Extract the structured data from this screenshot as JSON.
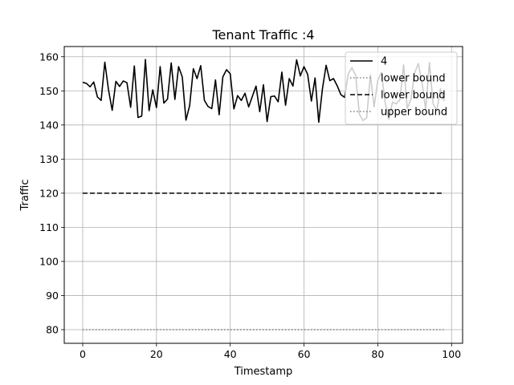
{
  "chart_data": {
    "type": "line",
    "title": "Tenant Traffic :4",
    "xlabel": "Timestamp",
    "ylabel": "Traffic",
    "xlim": [
      -5,
      103
    ],
    "ylim": [
      76,
      163
    ],
    "xticks": [
      0,
      20,
      40,
      60,
      80,
      100
    ],
    "yticks": [
      80,
      90,
      100,
      110,
      120,
      130,
      140,
      150,
      160
    ],
    "grid": true,
    "legend_position": "top-right",
    "series": [
      {
        "name": "4",
        "style": "solid",
        "color": "#000000",
        "x": [
          0,
          1,
          2,
          3,
          4,
          5,
          6,
          7,
          8,
          9,
          10,
          11,
          12,
          13,
          14,
          15,
          16,
          17,
          18,
          19,
          20,
          21,
          22,
          23,
          24,
          25,
          26,
          27,
          28,
          29,
          30,
          31,
          32,
          33,
          34,
          35,
          36,
          37,
          38,
          39,
          40,
          41,
          42,
          43,
          44,
          45,
          46,
          47,
          48,
          49,
          50,
          51,
          52,
          53,
          54,
          55,
          56,
          57,
          58,
          59,
          60,
          61,
          62,
          63,
          64,
          65,
          66,
          67,
          68,
          69,
          70,
          71,
          72,
          73,
          74,
          75,
          76,
          77,
          78,
          79,
          80,
          81,
          82,
          83,
          84,
          85,
          86,
          87,
          88,
          89,
          90,
          91,
          92,
          93,
          94,
          95,
          96,
          97,
          98
        ],
        "y": [
          152.5,
          152.2,
          151.2,
          152.6,
          148.2,
          147.2,
          158.4,
          150.3,
          144.3,
          152.8,
          151.3,
          152.9,
          152.4,
          145.2,
          157.3,
          142.2,
          142.6,
          159.2,
          144.2,
          150.3,
          145.1,
          157.1,
          146.4,
          147.6,
          158.2,
          147.5,
          157.1,
          154.1,
          141.4,
          145.7,
          156.5,
          153.6,
          157.4,
          147.2,
          145.4,
          144.8,
          153.2,
          143.0,
          154.1,
          156.2,
          155.0,
          144.7,
          148.6,
          147.2,
          149.3,
          145.3,
          148.4,
          151.4,
          143.9,
          151.8,
          141.0,
          148.3,
          148.5,
          146.8,
          155.5,
          145.8,
          153.6,
          151.4,
          159.1,
          154.4,
          157.1,
          154.8,
          147.0,
          153.8,
          140.8,
          150.6,
          157.5,
          153.0,
          153.6,
          151.5,
          148.9,
          148.1,
          155.0,
          156.8,
          154.6,
          143.2,
          141.3,
          142.1,
          154.7,
          145.3,
          153.0,
          155.4,
          146.6,
          141.8,
          146.7,
          146.2,
          147.4,
          157.6,
          144.9,
          147.5,
          155.3,
          158.0,
          152.3,
          144.5,
          158.3,
          146.2,
          144.3,
          150.6,
          147.0
        ]
      },
      {
        "name": "lower bound",
        "style": "dotted",
        "color": "#808080",
        "x": [
          0,
          98
        ],
        "y": [
          80,
          80
        ]
      },
      {
        "name": "lower bound",
        "style": "dashed",
        "color": "#000000",
        "x": [
          0,
          98
        ],
        "y": [
          120,
          120
        ]
      },
      {
        "name": "upper bound",
        "style": "dotted",
        "color": "#808080",
        "x": [],
        "y": []
      }
    ]
  }
}
